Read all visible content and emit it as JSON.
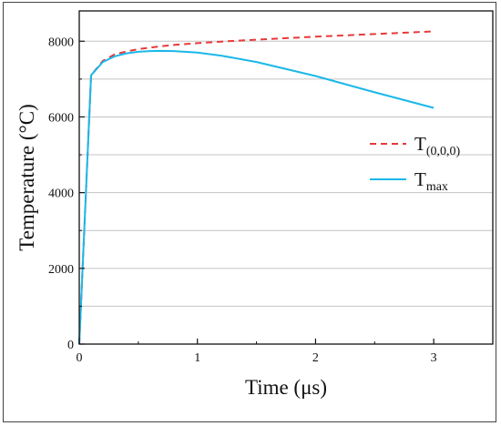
{
  "chart_data": {
    "type": "line",
    "title": "",
    "xlabel": "Time (μs)",
    "ylabel": "Temperature (°C)",
    "xlim": [
      0,
      3.5
    ],
    "ylim": [
      0,
      8800
    ],
    "x_ticks": [
      "0",
      "1",
      "2",
      "3"
    ],
    "y_ticks": [
      "0",
      "2000",
      "4000",
      "6000",
      "8000"
    ],
    "grid": "horizontal",
    "legend_position": "right",
    "series": [
      {
        "name": "T",
        "subscript": "(0,0,0)",
        "color": "#e8393a",
        "style": "dashed",
        "x": [
          0,
          0.1,
          0.2,
          0.3,
          0.4,
          0.5,
          0.6,
          0.7,
          0.8,
          1.0,
          1.2,
          1.5,
          2.0,
          2.5,
          3.0
        ],
        "y": [
          0,
          7100,
          7480,
          7650,
          7730,
          7790,
          7830,
          7870,
          7900,
          7950,
          7990,
          8040,
          8120,
          8190,
          8260
        ]
      },
      {
        "name": "T",
        "subscript": "max",
        "color": "#1ab8e8",
        "style": "solid",
        "x": [
          0,
          0.1,
          0.2,
          0.3,
          0.4,
          0.5,
          0.6,
          0.7,
          0.8,
          1.0,
          1.2,
          1.5,
          2.0,
          2.5,
          3.0
        ],
        "y": [
          0,
          7100,
          7450,
          7600,
          7680,
          7720,
          7740,
          7745,
          7740,
          7700,
          7620,
          7450,
          7080,
          6650,
          6240
        ]
      }
    ]
  }
}
